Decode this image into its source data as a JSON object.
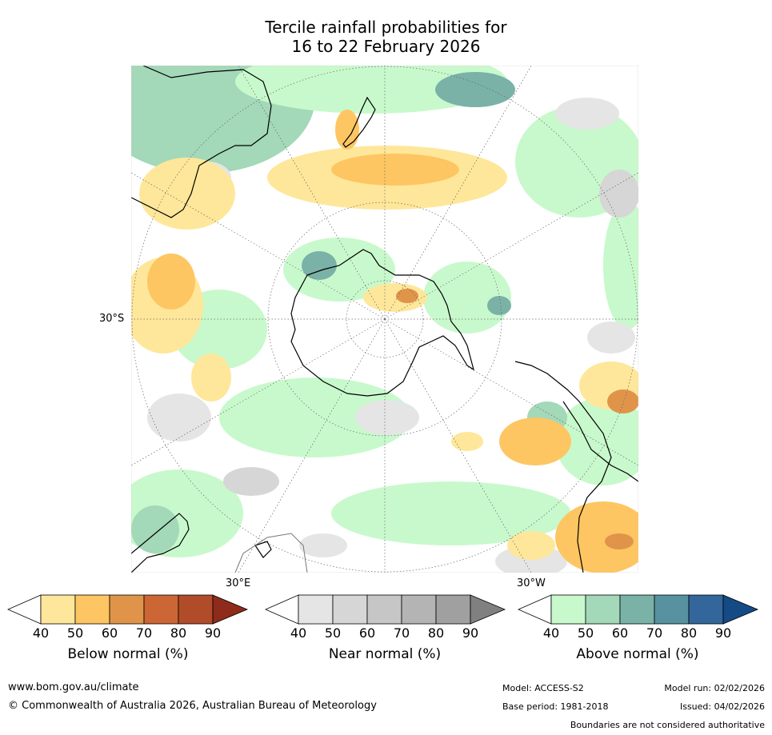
{
  "title": {
    "line1": "Tercile rainfall probabilities for",
    "line2": "16 to 22 February 2026"
  },
  "map": {
    "projection": "south-polar stereographic",
    "labels": {
      "lat_30s": "30°S",
      "lon_30e": "30°E",
      "lon_30w": "30°W"
    }
  },
  "legend": {
    "below": {
      "label": "Below normal (%)",
      "ticks": [
        "40",
        "50",
        "60",
        "70",
        "80",
        "90"
      ],
      "colors": [
        "#ffffff",
        "#fee79a",
        "#fdc662",
        "#e0944a",
        "#cc6634",
        "#b14c2a",
        "#8e2b1a"
      ]
    },
    "near": {
      "label": "Near normal (%)",
      "ticks": [
        "40",
        "50",
        "60",
        "70",
        "80",
        "90"
      ],
      "colors": [
        "#ffffff",
        "#e5e5e5",
        "#d6d6d6",
        "#c6c6c6",
        "#b4b4b4",
        "#a0a0a0",
        "#808080"
      ]
    },
    "above": {
      "label": "Above normal (%)",
      "ticks": [
        "40",
        "50",
        "60",
        "70",
        "80",
        "90"
      ],
      "colors": [
        "#ffffff",
        "#c8f9cc",
        "#a3d8b8",
        "#7ab2a8",
        "#5892a0",
        "#33669a",
        "#154b85"
      ]
    }
  },
  "footer": {
    "website": "www.bom.gov.au/climate",
    "copyright": "© Commonwealth of Australia 2026, Australian Bureau of Meteorology",
    "model": "Model: ACCESS-S2",
    "base_period": "Base period: 1981-2018",
    "model_run": "Model run: 02/02/2026",
    "issued": "Issued: 04/02/2026",
    "disclaimer": "Boundaries are not considered authoritative"
  }
}
